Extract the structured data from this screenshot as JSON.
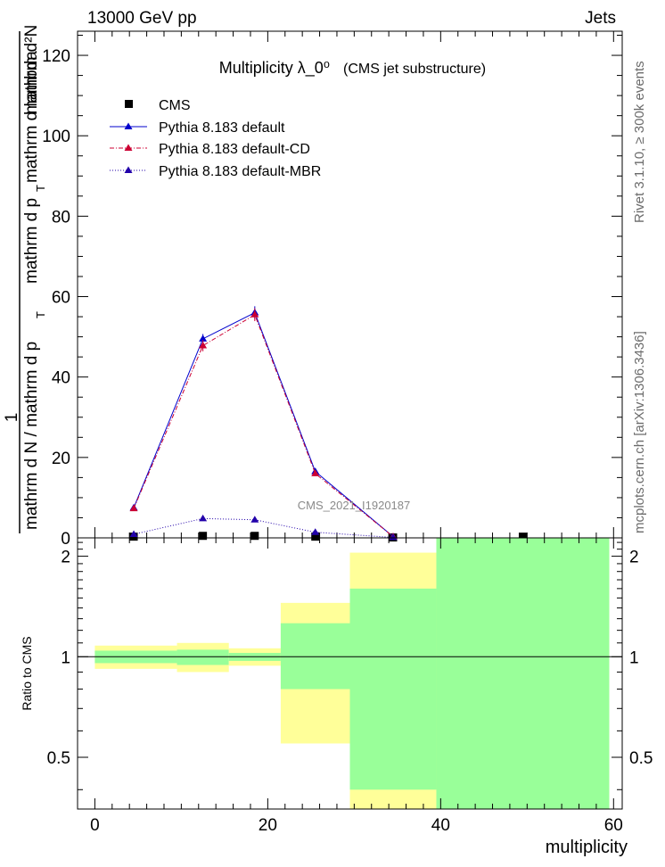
{
  "header": {
    "energy": "13000 GeV pp",
    "process": "Jets",
    "rivet_note": "Rivet 3.1.10, ≥ 300k events",
    "mcplots_note": "mcplots.cern.ch [arXiv:1306.3436]",
    "analysis_id": "CMS_2021_I1920187"
  },
  "chart_data": [
    {
      "type": "line",
      "title": "Multiplicity  λ_0⁰",
      "subtitle": "(CMS jet substructure)",
      "ylabel_numerator": "1",
      "ylabel_top": "mathrm d²N",
      "ylabel_top2": "mathrm d p",
      "ylabel_top3": "mathrm d lambda",
      "ylabel_bottom": "mathrm d N / mathrm d p",
      "ylabel_sub_t": "T",
      "xlim": [
        -2,
        61
      ],
      "ylim": [
        0,
        126
      ],
      "yticks": [
        0,
        20,
        40,
        60,
        80,
        100,
        120
      ],
      "yticklabels": [
        "0",
        "20",
        "40",
        "60",
        "80",
        "100",
        "120"
      ],
      "legend_position": "top-left",
      "series": [
        {
          "name": "CMS",
          "style": "marker-square",
          "color": "#000000",
          "x": [
            4.5,
            12.5,
            18.5,
            25.5,
            34.5,
            49.5
          ],
          "y": [
            0.3,
            0.5,
            0.5,
            0.3,
            0.1,
            0.3
          ]
        },
        {
          "name": "Pythia 8.183 default",
          "style": "solid",
          "color": "#0000cc",
          "x": [
            4.5,
            12.5,
            18.5,
            25.5,
            34.5
          ],
          "y": [
            7.5,
            49.5,
            56.0,
            16.5,
            0.3
          ],
          "err": [
            0.6,
            1.2,
            1.6,
            0.6,
            0.1
          ]
        },
        {
          "name": "Pythia 8.183 default-CD",
          "style": "dashdot",
          "color": "#cc0033",
          "x": [
            4.5,
            12.5,
            18.5,
            25.5,
            34.5
          ],
          "y": [
            7.3,
            47.8,
            55.5,
            16.0,
            0.3
          ],
          "err": [
            0.6,
            1.4,
            1.6,
            0.6,
            0.1
          ]
        },
        {
          "name": "Pythia 8.183 default-MBR",
          "style": "dotted",
          "color": "#2200aa",
          "x": [
            4.5,
            12.5,
            18.5,
            25.5,
            34.5
          ],
          "y": [
            0.9,
            4.8,
            4.5,
            1.4,
            0.1
          ],
          "err": [
            0.2,
            0.4,
            0.4,
            0.2,
            0.05
          ]
        }
      ]
    },
    {
      "type": "ratio-band",
      "ylabel": "Ratio to CMS",
      "xlabel": "multiplicity",
      "xlim": [
        -2,
        61
      ],
      "ylim": [
        0.35,
        2.27
      ],
      "xticks": [
        0,
        20,
        40,
        60
      ],
      "xticklabels": [
        "0",
        "20",
        "40",
        "60"
      ],
      "yticks": [
        0.5,
        1,
        2
      ],
      "yticklabels": [
        "0.5",
        "1",
        "2"
      ],
      "reference": 1,
      "band_colors": {
        "stat": "#99ff99",
        "total": "#ffff99",
        "line": "#000000"
      },
      "bins": [
        {
          "lo": 0,
          "hi": 9.5,
          "stat": [
            0.957,
            1.043
          ],
          "total": [
            0.92,
            1.08
          ]
        },
        {
          "lo": 9.5,
          "hi": 15.5,
          "stat": [
            0.945,
            1.05
          ],
          "total": [
            0.9,
            1.1
          ]
        },
        {
          "lo": 15.5,
          "hi": 21.5,
          "stat": [
            0.972,
            1.027
          ],
          "total": [
            0.94,
            1.06
          ]
        },
        {
          "lo": 21.5,
          "hi": 29.5,
          "stat": [
            0.8,
            1.26
          ],
          "total": [
            0.55,
            1.45
          ]
        },
        {
          "lo": 29.5,
          "hi": 39.5,
          "stat": [
            0.4,
            1.6
          ],
          "total": [
            0.35,
            2.05
          ]
        },
        {
          "lo": 39.5,
          "hi": 59.5,
          "stat": [
            0.35,
            2.27
          ],
          "total": [
            0.35,
            2.27
          ]
        }
      ]
    }
  ]
}
